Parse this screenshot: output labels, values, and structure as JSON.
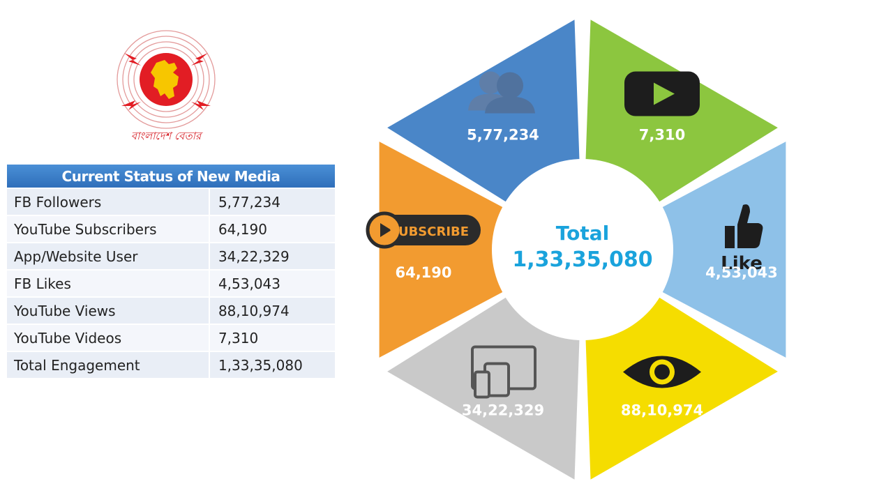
{
  "logo": {
    "icon": "bangladesh-betar-logo",
    "caption": "বাংলাদেশ বেতার"
  },
  "table": {
    "title": "Current Status of New Media",
    "rows": [
      {
        "label": "FB Followers",
        "value": "5,77,234"
      },
      {
        "label": "YouTube Subscribers",
        "value": "64,190"
      },
      {
        "label": "App/Website User",
        "value": "34,22,329"
      },
      {
        "label": "FB Likes",
        "value": "4,53,043"
      },
      {
        "label": "YouTube Views",
        "value": "88,10,974"
      },
      {
        "label": "YouTube Videos",
        "value": "7,310"
      },
      {
        "label": "Total Engagement",
        "value": "1,33,35,080"
      }
    ]
  },
  "chart_data": {
    "type": "pie",
    "center_title": "Total",
    "center_value": "1,33,35,080",
    "segments": [
      {
        "label": "5,77,234",
        "value": 577234,
        "icon": "users-icon",
        "color": "#4a86c8"
      },
      {
        "label": "7,310",
        "value": 7310,
        "icon": "youtube-play-icon",
        "color": "#8cc63f"
      },
      {
        "label": "4,53,043",
        "value": 453043,
        "icon": "thumbs-up-like-icon",
        "icon_text": "Like",
        "color": "#8ec1e8"
      },
      {
        "label": "88,10,974",
        "value": 8810974,
        "icon": "eye-icon",
        "color": "#f5dd00"
      },
      {
        "label": "34,22,329",
        "value": 3422329,
        "icon": "devices-icon",
        "color": "#c9c9c9"
      },
      {
        "label": "64,190",
        "value": 64190,
        "icon": "youtube-subscribe-icon",
        "icon_text": "SUBSCRIBE",
        "color": "#f29b30"
      }
    ]
  }
}
